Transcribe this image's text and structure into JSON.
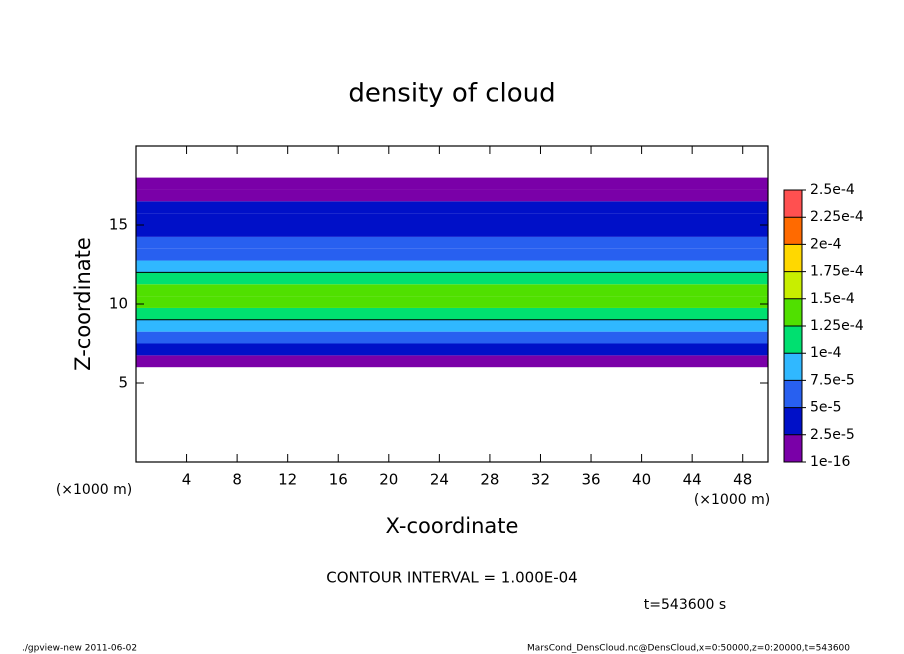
{
  "chart_data": {
    "type": "contour",
    "title": "density of cloud",
    "x_label": "X-coordinate",
    "y_label": "Z-coordinate",
    "x_unit_label": "(×1000 m)",
    "y_unit_label": "(×1000 m)",
    "xlim": [
      0,
      50
    ],
    "ylim": [
      0,
      20
    ],
    "xticks": [
      4,
      8,
      12,
      16,
      20,
      24,
      28,
      32,
      36,
      40,
      44,
      48
    ],
    "yticks": [
      5,
      10,
      15
    ],
    "y_edges": [
      6,
      6.75,
      7.5,
      8.25,
      9,
      9.75,
      10.5,
      11.25,
      12,
      12.75,
      13.5,
      14.25,
      15,
      15.75,
      16.5,
      17.25,
      18
    ],
    "values": [
      1e-05,
      3e-05,
      6e-05,
      9e-05,
      0.00012,
      0.000135,
      0.000125,
      0.0001,
      8e-05,
      6e-05,
      5e-05,
      4.5e-05,
      4e-05,
      3.5e-05,
      2e-05,
      1e-05
    ],
    "contour_interval": 0.0001,
    "contour_label": "CONTOUR INTERVAL = 1.000E-04",
    "levels": [
      {
        "value": 1e-16,
        "label": "1e-16"
      },
      {
        "value": 2.5e-05,
        "label": "2.5e-5"
      },
      {
        "value": 5e-05,
        "label": "5e-5"
      },
      {
        "value": 7.5e-05,
        "label": "7.5e-5"
      },
      {
        "value": 0.0001,
        "label": "1e-4"
      },
      {
        "value": 0.000125,
        "label": "1.25e-4"
      },
      {
        "value": 0.00015,
        "label": "1.5e-4"
      },
      {
        "value": 0.000175,
        "label": "1.75e-4"
      },
      {
        "value": 0.0002,
        "label": "2e-4"
      },
      {
        "value": 0.000225,
        "label": "2.25e-4"
      },
      {
        "value": 0.00025,
        "label": "2.5e-4"
      }
    ],
    "colors": [
      "#7a00a8",
      "#0010c8",
      "#2860f0",
      "#30b8ff",
      "#00e070",
      "#50e000",
      "#c8ee00",
      "#ffd800",
      "#ff6a00",
      "#ff5050"
    ],
    "time_label": "t=543600 s",
    "footer_left": "./gpview-new  2011-06-02",
    "footer_right": "MarsCond_DensCloud.nc@DensCloud,x=0:50000,z=0:20000,t=543600"
  }
}
